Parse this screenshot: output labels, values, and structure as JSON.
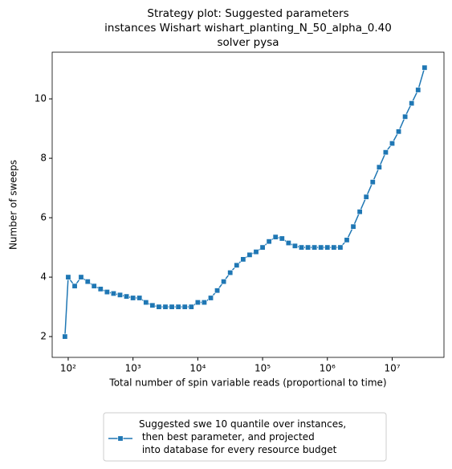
{
  "chart_data": {
    "type": "line",
    "title": [
      "Strategy plot: Suggested parameters",
      "instances Wishart wishart_planting_N_50_alpha_0.40",
      "solver pysa"
    ],
    "xlabel": "Total number of spin variable reads (proportional to time)",
    "ylabel": "Number of sweeps",
    "xscale": "log",
    "xlim": [
      56.6,
      63000000
    ],
    "ylim": [
      1.3,
      11.57
    ],
    "xticks": [
      {
        "value": 100,
        "label": "10²"
      },
      {
        "value": 1000,
        "label": "10³"
      },
      {
        "value": 10000,
        "label": "10⁴"
      },
      {
        "value": 100000,
        "label": "10⁵"
      },
      {
        "value": 1000000,
        "label": "10⁶"
      },
      {
        "value": 10000000,
        "label": "10⁷"
      }
    ],
    "yticks": [
      2,
      4,
      6,
      8,
      10
    ],
    "legend": "lower center",
    "x": [
      89,
      100,
      126,
      158,
      200,
      251,
      316,
      398,
      501,
      631,
      794,
      1000,
      1259,
      1585,
      1995,
      2512,
      3162,
      3981,
      5012,
      6310,
      7943,
      10000,
      12589,
      15849,
      19953,
      25119,
      31623,
      39811,
      50119,
      63096,
      79433,
      100000,
      125893,
      158489,
      199526,
      251189,
      316228,
      398107,
      501187,
      630957,
      794328,
      1000000,
      1258925,
      1584893,
      1995262,
      2511886,
      3162278,
      3981072,
      5011872,
      6309573,
      7943282,
      10000000,
      12589254,
      15848932,
      19952623,
      25118864,
      31622777
    ],
    "series": [
      {
        "name": "Suggested swe 10 quantile over instances,\n then best parameter, and projected\n into database for every resource budget",
        "color": "#1f77b4",
        "values": [
          2.0,
          4.0,
          3.7,
          4.0,
          3.85,
          3.7,
          3.6,
          3.5,
          3.45,
          3.4,
          3.35,
          3.3,
          3.3,
          3.15,
          3.05,
          3.0,
          3.0,
          3.0,
          3.0,
          3.0,
          3.0,
          3.15,
          3.15,
          3.3,
          3.55,
          3.85,
          4.15,
          4.4,
          4.6,
          4.75,
          4.85,
          5.0,
          5.2,
          5.35,
          5.3,
          5.15,
          5.05,
          5.0,
          5.0,
          5.0,
          5.0,
          5.0,
          5.0,
          5.0,
          5.25,
          5.7,
          6.2,
          6.7,
          7.2,
          7.7,
          8.2,
          8.5,
          8.9,
          9.4,
          9.85,
          10.3,
          11.05
        ]
      }
    ]
  }
}
